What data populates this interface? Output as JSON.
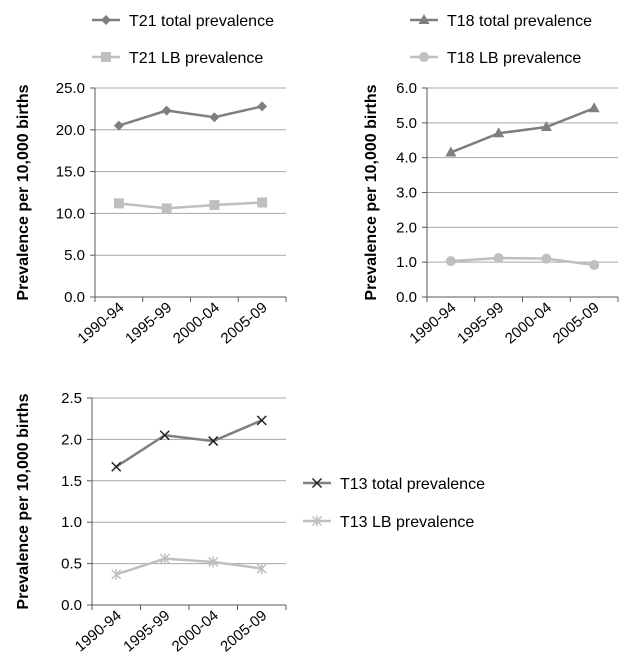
{
  "chart_data": [
    {
      "type": "line",
      "ylabel": "Prevalence per 10,000 births",
      "categories": [
        "1990-94",
        "1995-99",
        "2000-04",
        "2005-09"
      ],
      "ylim": [
        0,
        25
      ],
      "yticks": [
        "0.0",
        "5.0",
        "10.0",
        "15.0",
        "20.0",
        "25.0"
      ],
      "grid": true,
      "legend_position": "top",
      "series": [
        {
          "name": "T21 total prevalence",
          "values": [
            20.5,
            22.3,
            21.5,
            22.8
          ],
          "color": "#7f7f7f",
          "marker": "diamond"
        },
        {
          "name": "T21 LB prevalence",
          "values": [
            11.2,
            10.6,
            11.0,
            11.3
          ],
          "color": "#bfbfbf",
          "marker": "square"
        }
      ]
    },
    {
      "type": "line",
      "ylabel": "Prevalence per 10,000 births",
      "categories": [
        "1990-94",
        "1995-99",
        "2000-04",
        "2005-09"
      ],
      "ylim": [
        0,
        6
      ],
      "yticks": [
        "0.0",
        "1.0",
        "2.0",
        "3.0",
        "4.0",
        "5.0",
        "6.0"
      ],
      "grid": true,
      "legend_position": "top",
      "series": [
        {
          "name": "T18 total prevalence",
          "values": [
            4.15,
            4.7,
            4.88,
            5.42
          ],
          "color": "#7f7f7f",
          "marker": "triangle"
        },
        {
          "name": "T18 LB prevalence",
          "values": [
            1.03,
            1.12,
            1.1,
            0.92
          ],
          "color": "#bfbfbf",
          "marker": "circle"
        }
      ]
    },
    {
      "type": "line",
      "ylabel": "Prevalence per 10,000 births",
      "categories": [
        "1990-94",
        "1995-99",
        "2000-04",
        "2005-09"
      ],
      "ylim": [
        0,
        2.5
      ],
      "yticks": [
        "0.0",
        "0.5",
        "1.0",
        "1.5",
        "2.0",
        "2.5"
      ],
      "grid": true,
      "legend_position": "right",
      "series": [
        {
          "name": "T13 total prevalence",
          "values": [
            1.67,
            2.05,
            1.98,
            2.23
          ],
          "color": "#7f7f7f",
          "marker": "x"
        },
        {
          "name": "T13 LB prevalence",
          "values": [
            0.37,
            0.56,
            0.52,
            0.44
          ],
          "color": "#bfbfbf",
          "marker": "asterisk"
        }
      ]
    }
  ]
}
